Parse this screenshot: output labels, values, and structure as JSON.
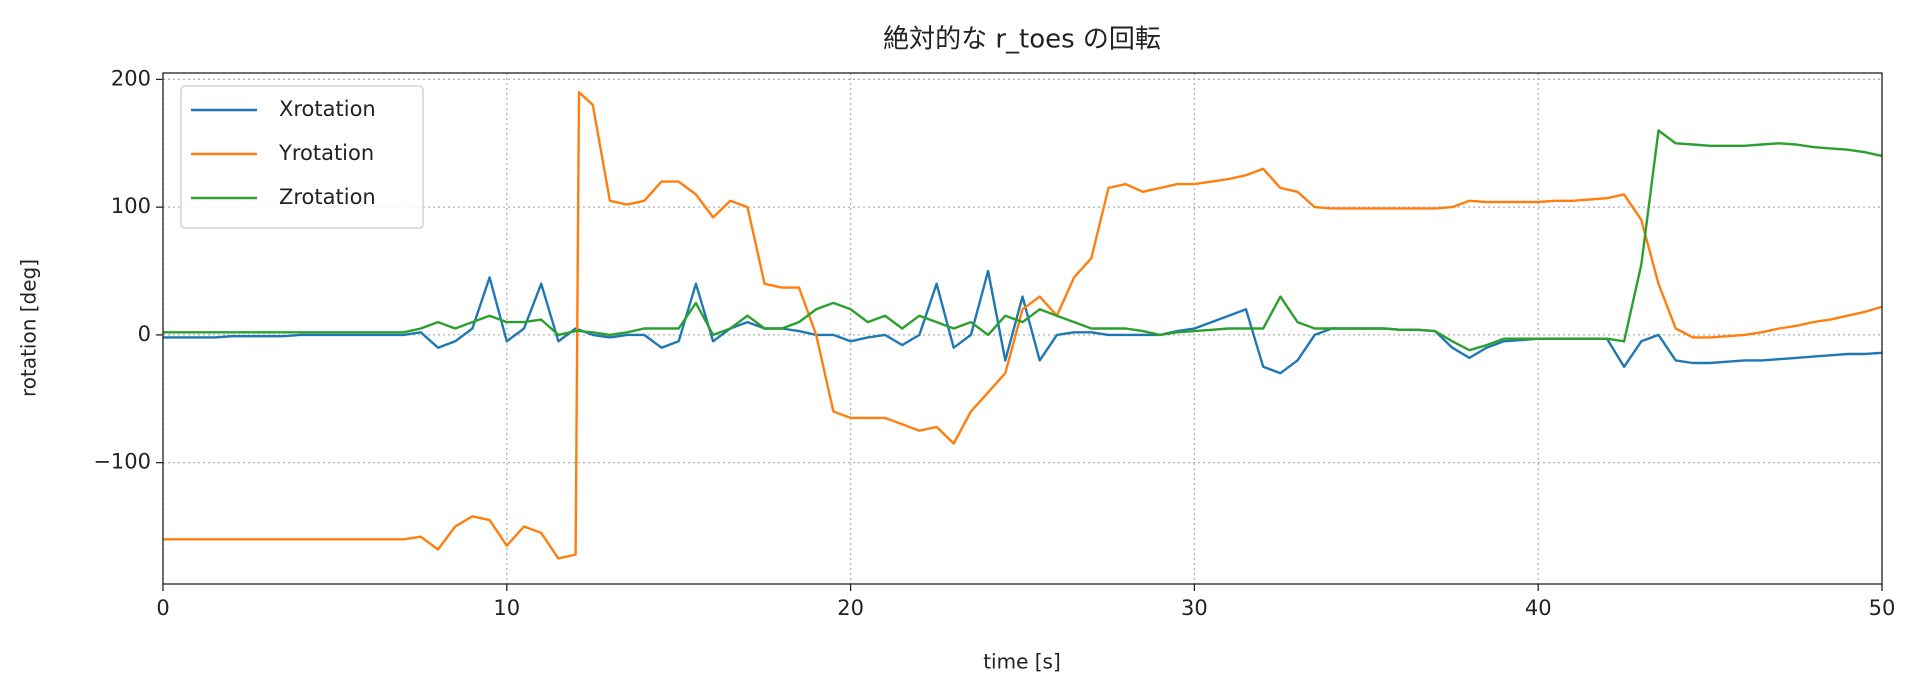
{
  "chart_data": {
    "type": "line",
    "title": "絶対的な r_toes の回転",
    "xlabel": "time [s]",
    "ylabel": "rotation [deg]",
    "x": [
      0,
      0.5,
      1,
      1.5,
      2,
      2.5,
      3,
      3.5,
      4,
      4.5,
      5,
      5.5,
      6,
      6.5,
      7,
      7.5,
      8,
      8.5,
      9,
      9.5,
      10,
      10.5,
      11,
      11.5,
      12,
      12.1,
      12.5,
      13,
      13.5,
      14,
      14.5,
      15,
      15.5,
      16,
      16.5,
      17,
      17.5,
      18,
      18.5,
      19,
      19.5,
      20,
      20.5,
      21,
      21.5,
      22,
      22.5,
      23,
      23.5,
      24,
      24.5,
      25,
      25.5,
      26,
      26.5,
      27,
      27.5,
      28,
      28.5,
      29,
      29.5,
      30,
      30.5,
      31,
      31.5,
      32,
      32.5,
      33,
      33.5,
      34,
      34.5,
      35,
      35.5,
      36,
      36.5,
      37,
      37.5,
      38,
      38.5,
      39,
      39.5,
      40,
      40.5,
      41,
      41.5,
      42,
      42.5,
      43,
      43.5,
      44,
      44.5,
      45,
      45.5,
      46,
      46.5,
      47,
      47.5,
      48,
      48.5,
      49,
      49.5,
      50
    ],
    "series": [
      {
        "name": "Xrotation",
        "color": "#1f77b4",
        "values": [
          -2,
          -2,
          -2,
          -2,
          -1,
          -1,
          -1,
          -1,
          0,
          0,
          0,
          0,
          0,
          0,
          0,
          2,
          -10,
          -5,
          5,
          45,
          -5,
          5,
          40,
          -5,
          5,
          4,
          0,
          -2,
          0,
          0,
          -10,
          -5,
          40,
          -5,
          5,
          10,
          5,
          5,
          3,
          0,
          0,
          -5,
          -2,
          0,
          -8,
          0,
          40,
          -10,
          0,
          50,
          -20,
          30,
          -20,
          0,
          2,
          2,
          0,
          0,
          0,
          0,
          3,
          5,
          10,
          15,
          20,
          -25,
          -30,
          -20,
          0,
          5,
          5,
          5,
          5,
          4,
          4,
          3,
          -10,
          -18,
          -10,
          -5,
          -4,
          -3,
          -3,
          -3,
          -3,
          -3,
          -25,
          -5,
          0,
          -20,
          -22,
          -22,
          -21,
          -20,
          -20,
          -19,
          -18,
          -17,
          -16,
          -15,
          -15,
          -14
        ]
      },
      {
        "name": "Yrotation",
        "color": "#ff7f0e",
        "values": [
          -160,
          -160,
          -160,
          -160,
          -160,
          -160,
          -160,
          -160,
          -160,
          -160,
          -160,
          -160,
          -160,
          -160,
          -160,
          -158,
          -168,
          -150,
          -142,
          -145,
          -165,
          -150,
          -155,
          -175,
          -172,
          190,
          180,
          105,
          102,
          105,
          120,
          120,
          110,
          92,
          105,
          100,
          40,
          37,
          37,
          0,
          -60,
          -65,
          -65,
          -65,
          -70,
          -75,
          -72,
          -85,
          -60,
          -45,
          -30,
          20,
          30,
          15,
          45,
          60,
          115,
          118,
          112,
          115,
          118,
          118,
          120,
          122,
          125,
          130,
          115,
          112,
          100,
          99,
          99,
          99,
          99,
          99,
          99,
          99,
          100,
          105,
          104,
          104,
          104,
          104,
          105,
          105,
          106,
          107,
          110,
          90,
          40,
          5,
          -2,
          -2,
          -1,
          0,
          2,
          5,
          7,
          10,
          12,
          15,
          18,
          22
        ]
      },
      {
        "name": "Zrotation",
        "color": "#2ca02c",
        "values": [
          2,
          2,
          2,
          2,
          2,
          2,
          2,
          2,
          2,
          2,
          2,
          2,
          2,
          2,
          2,
          5,
          10,
          5,
          10,
          15,
          10,
          10,
          12,
          0,
          3,
          3,
          2,
          0,
          2,
          5,
          5,
          5,
          25,
          0,
          5,
          15,
          5,
          5,
          10,
          20,
          25,
          20,
          10,
          15,
          5,
          15,
          10,
          5,
          10,
          0,
          15,
          10,
          20,
          15,
          10,
          5,
          5,
          5,
          3,
          0,
          2,
          3,
          4,
          5,
          5,
          5,
          30,
          10,
          5,
          5,
          5,
          5,
          5,
          4,
          4,
          3,
          -5,
          -12,
          -8,
          -3,
          -3,
          -3,
          -3,
          -3,
          -3,
          -3,
          -5,
          55,
          160,
          150,
          149,
          148,
          148,
          148,
          149,
          150,
          149,
          147,
          146,
          145,
          143,
          140
        ]
      }
    ],
    "xlim": [
      0,
      50
    ],
    "xticks": [
      0,
      10,
      20,
      30,
      40,
      50
    ],
    "ylim": [
      -195,
      205
    ],
    "yticks": [
      {
        "value": -100,
        "label": "−100"
      },
      0,
      100,
      200
    ],
    "grid": true,
    "legend": "upper left"
  }
}
